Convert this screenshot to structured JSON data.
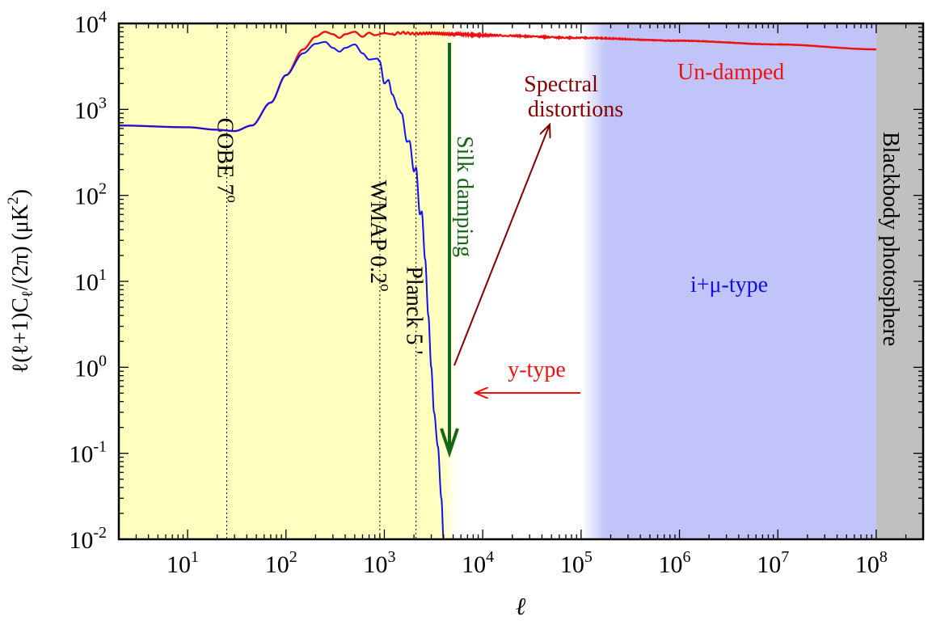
{
  "chart_data": {
    "type": "line",
    "title": "",
    "xlabel": "ℓ",
    "ylabel_parts": {
      "pre": "ℓ(ℓ+1)C",
      "sub": "ℓ",
      "mid": "/(2π) (μK",
      "sup": "2",
      "post": ")"
    },
    "x_scale": "log",
    "y_scale": "log",
    "xlim": [
      2,
      300000000
    ],
    "ylim": [
      0.01,
      10000
    ],
    "x_ticks": [
      {
        "value": 10,
        "base": "10",
        "exp": "1"
      },
      {
        "value": 100,
        "base": "10",
        "exp": "2"
      },
      {
        "value": 1000,
        "base": "10",
        "exp": "3"
      },
      {
        "value": 10000,
        "base": "10",
        "exp": "4"
      },
      {
        "value": 100000,
        "base": "10",
        "exp": "5"
      },
      {
        "value": 1000000,
        "base": "10",
        "exp": "6"
      },
      {
        "value": 10000000,
        "base": "10",
        "exp": "7"
      },
      {
        "value": 100000000,
        "base": "10",
        "exp": "8"
      }
    ],
    "y_ticks": [
      {
        "value": 0.01,
        "base": "10",
        "exp": "-2"
      },
      {
        "value": 0.1,
        "base": "10",
        "exp": "-1"
      },
      {
        "value": 1,
        "base": "10",
        "exp": "0"
      },
      {
        "value": 10,
        "base": "10",
        "exp": "1"
      },
      {
        "value": 100,
        "base": "10",
        "exp": "2"
      },
      {
        "value": 1000,
        "base": "10",
        "exp": "3"
      },
      {
        "value": 10000,
        "base": "10",
        "exp": "4"
      }
    ],
    "regions": [
      {
        "x": [
          2,
          4000
        ],
        "color": "#ffffc0",
        "fade_to": 5500
      },
      {
        "x": [
          100000,
          100000000
        ],
        "color": "#c0c4f8",
        "fade_from": 180000
      },
      {
        "x": [
          100000000,
          300000000
        ],
        "color": "#c0c0c0"
      }
    ],
    "vlines": [
      {
        "x": 25,
        "label": "COBE 7",
        "sup": "o",
        "label_y": 800
      },
      {
        "x": 900,
        "label": "WMAP 0.2",
        "sup": "o",
        "label_y": 150
      },
      {
        "x": 2100,
        "label": "Planck 5 '",
        "sup": "",
        "label_y": 15
      }
    ],
    "series": [
      {
        "name": "Un-damped",
        "color": "#ee1111",
        "points": [
          [
            2,
            650
          ],
          [
            10,
            620
          ],
          [
            20,
            580
          ],
          [
            30,
            560
          ],
          [
            45,
            650
          ],
          [
            70,
            1200
          ],
          [
            100,
            2500
          ],
          [
            150,
            5000
          ],
          [
            200,
            7000
          ],
          [
            250,
            8000
          ],
          [
            300,
            7500
          ],
          [
            350,
            6800
          ],
          [
            400,
            7500
          ],
          [
            500,
            8000
          ],
          [
            600,
            7000
          ],
          [
            700,
            7800
          ],
          [
            800,
            7300
          ],
          [
            1000,
            7700
          ],
          [
            1200,
            7500
          ],
          [
            1500,
            7800
          ],
          [
            2000,
            7600
          ],
          [
            3000,
            7700
          ],
          [
            5000,
            7500
          ],
          [
            10000,
            7300
          ],
          [
            100000,
            6800
          ],
          [
            1000000,
            6300
          ],
          [
            10000000,
            5700
          ],
          [
            100000000,
            5000
          ]
        ]
      },
      {
        "name": "",
        "color": "#1111ee",
        "points": [
          [
            2,
            650
          ],
          [
            10,
            620
          ],
          [
            20,
            580
          ],
          [
            30,
            560
          ],
          [
            45,
            650
          ],
          [
            70,
            1200
          ],
          [
            100,
            2500
          ],
          [
            150,
            4500
          ],
          [
            200,
            5800
          ],
          [
            250,
            6100
          ],
          [
            300,
            5200
          ],
          [
            350,
            4700
          ],
          [
            400,
            5200
          ],
          [
            500,
            5700
          ],
          [
            600,
            4500
          ],
          [
            700,
            3800
          ],
          [
            850,
            3900
          ],
          [
            900,
            3600
          ],
          [
            1000,
            2000
          ],
          [
            1100,
            2200
          ],
          [
            1200,
            1500
          ],
          [
            1400,
            1000
          ],
          [
            1500,
            900
          ],
          [
            1700,
            420
          ],
          [
            1800,
            430
          ],
          [
            2000,
            190
          ],
          [
            2100,
            210
          ],
          [
            2300,
            60
          ],
          [
            2400,
            65
          ],
          [
            2600,
            18
          ],
          [
            2800,
            4
          ],
          [
            3000,
            1
          ],
          [
            3200,
            0.3
          ],
          [
            3500,
            0.12
          ],
          [
            3800,
            0.03
          ],
          [
            4000,
            0.01
          ]
        ]
      }
    ],
    "annotations": {
      "un_damped": "Un-damped",
      "spectral_line1": "Spectral",
      "spectral_line2": "distortions",
      "silk": "Silk damping",
      "y_type": "y-type",
      "imu_type": "i+μ-type",
      "blackbody": "Blackbody photosphere"
    },
    "colors": {
      "silk": "#166616",
      "spectral": "#800000",
      "y_type": "#ee1111",
      "imu": "#1111dd"
    }
  }
}
